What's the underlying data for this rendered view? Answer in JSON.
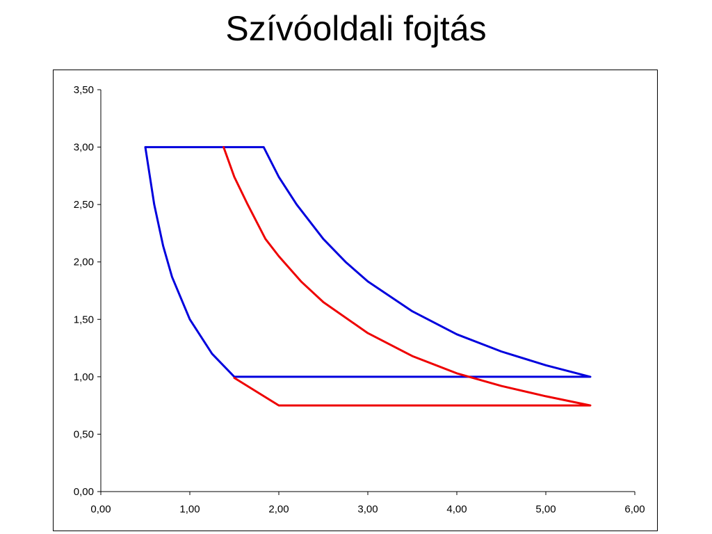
{
  "slide": {
    "title": "Szívóoldali fojtás"
  },
  "chart_data": {
    "type": "line",
    "title": "Szívóoldali fojtás",
    "xlabel": "",
    "ylabel": "",
    "xlim": [
      0,
      6
    ],
    "ylim": [
      0,
      3.5
    ],
    "x_ticks": [
      "0,00",
      "1,00",
      "2,00",
      "3,00",
      "4,00",
      "5,00",
      "6,00"
    ],
    "y_ticks": [
      "0,00",
      "0,50",
      "1,00",
      "1,50",
      "2,00",
      "2,50",
      "3,00",
      "3,50"
    ],
    "x_tick_values": [
      0,
      1,
      2,
      3,
      4,
      5,
      6
    ],
    "y_tick_values": [
      0,
      0.5,
      1,
      1.5,
      2,
      2.5,
      3,
      3.5
    ],
    "grid": false,
    "legend": "none",
    "series": [
      {
        "color": "#0000dd",
        "points": [
          [
            0.5,
            3.0
          ],
          [
            1.83,
            3.0
          ],
          [
            2.0,
            2.74
          ],
          [
            2.2,
            2.5
          ],
          [
            2.5,
            2.2
          ],
          [
            2.75,
            2.0
          ],
          [
            3.0,
            1.83
          ],
          [
            3.5,
            1.57
          ],
          [
            4.0,
            1.37
          ],
          [
            4.5,
            1.22
          ],
          [
            5.0,
            1.1
          ],
          [
            5.5,
            1.0
          ],
          [
            1.5,
            1.0
          ],
          [
            1.25,
            1.2
          ],
          [
            1.0,
            1.5
          ],
          [
            0.8,
            1.87
          ],
          [
            0.7,
            2.14
          ],
          [
            0.6,
            2.5
          ],
          [
            0.5,
            3.0
          ]
        ]
      },
      {
        "color": "#ee0000",
        "points": [
          [
            1.38,
            3.0
          ],
          [
            1.5,
            2.74
          ],
          [
            1.65,
            2.5
          ],
          [
            1.85,
            2.2
          ],
          [
            2.0,
            2.05
          ],
          [
            2.25,
            1.83
          ],
          [
            2.5,
            1.65
          ],
          [
            3.0,
            1.38
          ],
          [
            3.5,
            1.18
          ],
          [
            4.0,
            1.03
          ],
          [
            4.5,
            0.92
          ],
          [
            5.0,
            0.83
          ],
          [
            5.5,
            0.75
          ],
          [
            2.0,
            0.75
          ],
          [
            1.5,
            0.99
          ]
        ]
      }
    ]
  }
}
